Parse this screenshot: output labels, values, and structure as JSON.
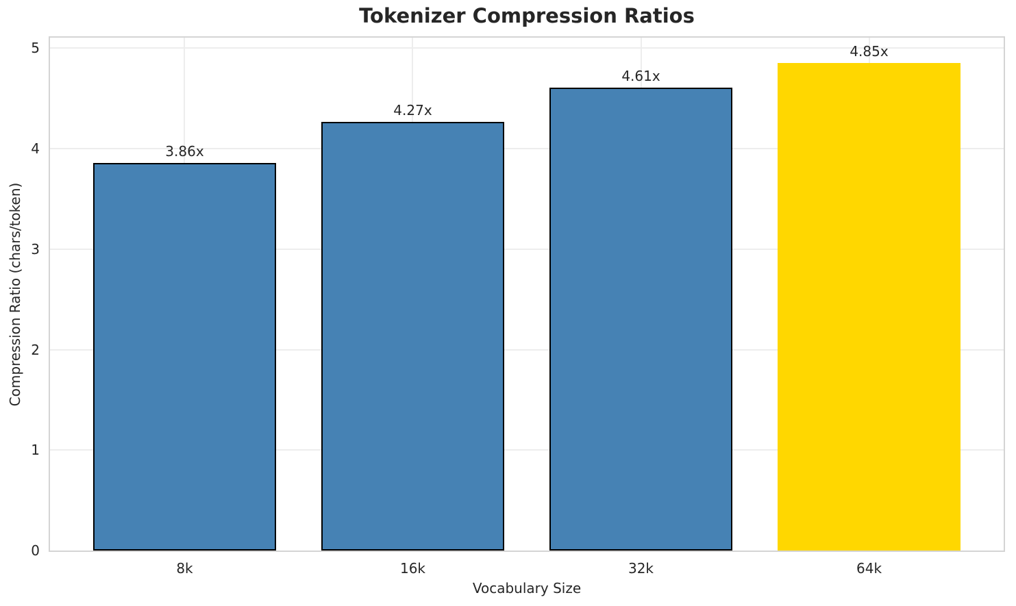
{
  "chart_data": {
    "type": "bar",
    "title": "Tokenizer Compression Ratios",
    "xlabel": "Vocabulary Size",
    "ylabel": "Compression Ratio (chars/token)",
    "categories": [
      "8k",
      "16k",
      "32k",
      "64k"
    ],
    "values": [
      3.86,
      4.27,
      4.61,
      4.85
    ],
    "bars": [
      {
        "category": "8k",
        "value": 3.86,
        "label": "3.86x",
        "color": "#4682B4",
        "edge_color": "#000000"
      },
      {
        "category": "16k",
        "value": 4.27,
        "label": "4.27x",
        "color": "#4682B4",
        "edge_color": "#000000"
      },
      {
        "category": "32k",
        "value": 4.61,
        "label": "4.61x",
        "color": "#4682B4",
        "edge_color": "#000000"
      },
      {
        "category": "64k",
        "value": 4.85,
        "label": "4.85x",
        "color": "#FFD700",
        "edge_color": "none"
      }
    ],
    "ylim": [
      0,
      5
    ],
    "yticks": [
      0,
      1,
      2,
      3,
      4,
      5
    ],
    "grid": true,
    "legend": "none",
    "highlight_index": 3,
    "colors": {
      "bar_default": "#4682B4",
      "bar_highlight": "#FFD700",
      "bar_edge": "#000000",
      "grid": "#ededed",
      "spine": "#d4d4d4",
      "text": "#262626",
      "background": "#ffffff"
    }
  }
}
